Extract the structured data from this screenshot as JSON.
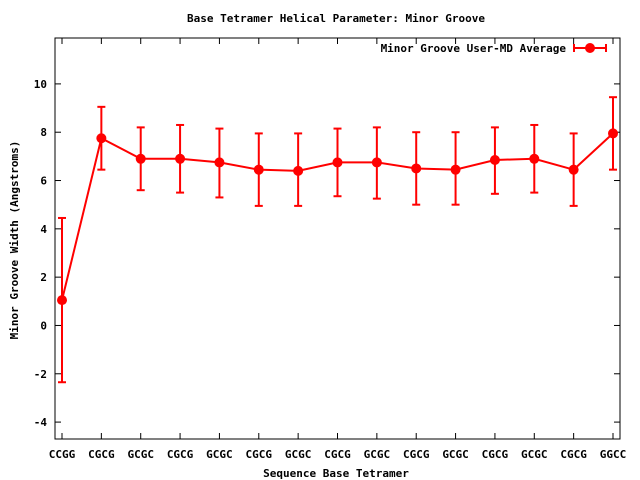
{
  "chart_data": {
    "type": "line",
    "title": "Base Tetramer Helical Parameter: Minor Groove",
    "xlabel": "Sequence Base Tetramer",
    "ylabel": "Minor Groove Width (Angstroms)",
    "ylim": [
      -4.7,
      11.9
    ],
    "yticks": [
      -4,
      -2,
      0,
      2,
      4,
      6,
      8,
      10
    ],
    "grid": false,
    "legend_position": "top-right",
    "categories": [
      "CCGG",
      "CGCG",
      "GCGC",
      "CGCG",
      "GCGC",
      "CGCG",
      "GCGC",
      "CGCG",
      "GCGC",
      "CGCG",
      "GCGC",
      "CGCG",
      "GCGC",
      "CGCG",
      "GGCC"
    ],
    "series": [
      {
        "name": "Minor Groove User-MD Average",
        "color": "#ff0000",
        "values": [
          1.05,
          7.75,
          6.9,
          6.9,
          6.75,
          6.45,
          6.4,
          6.75,
          6.75,
          6.5,
          6.45,
          6.85,
          6.9,
          6.45,
          7.95
        ],
        "err_low": [
          -2.35,
          6.45,
          5.6,
          5.5,
          5.3,
          4.95,
          4.95,
          5.35,
          5.25,
          5.0,
          5.0,
          5.45,
          5.5,
          4.95,
          6.45
        ],
        "err_high": [
          4.45,
          9.05,
          8.2,
          8.3,
          8.15,
          7.95,
          7.95,
          8.15,
          8.2,
          8.0,
          8.0,
          8.2,
          8.3,
          7.95,
          9.45
        ]
      }
    ]
  }
}
